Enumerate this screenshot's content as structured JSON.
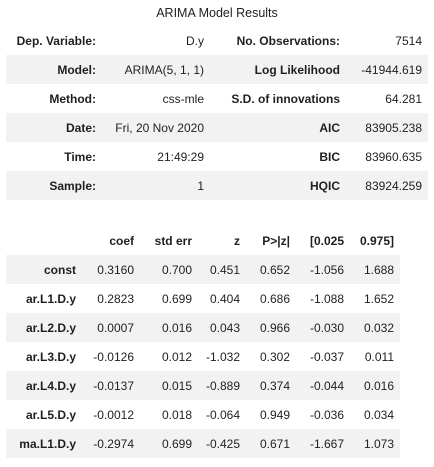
{
  "caption": "ARIMA Model Results",
  "summary": [
    [
      "Dep. Variable:",
      "D.y",
      "No. Observations:",
      "7514"
    ],
    [
      "Model:",
      "ARIMA(5, 1, 1)",
      "Log Likelihood",
      "-41944.619"
    ],
    [
      "Method:",
      "css-mle",
      "S.D. of innovations",
      "64.281"
    ],
    [
      "Date:",
      "Fri, 20 Nov 2020",
      "AIC",
      "83905.238"
    ],
    [
      "Time:",
      "21:49:29",
      "BIC",
      "83960.635"
    ],
    [
      "Sample:",
      "1",
      "HQIC",
      "83924.259"
    ]
  ],
  "coef_table": {
    "headers": [
      "",
      "coef",
      "std err",
      "z",
      "P>|z|",
      "[0.025",
      "0.975]"
    ],
    "rows": [
      [
        "const",
        "0.3160",
        "0.700",
        "0.451",
        "0.652",
        "-1.056",
        "1.688"
      ],
      [
        "ar.L1.D.y",
        "0.2823",
        "0.699",
        "0.404",
        "0.686",
        "-1.088",
        "1.652"
      ],
      [
        "ar.L2.D.y",
        "0.0007",
        "0.016",
        "0.043",
        "0.966",
        "-0.030",
        "0.032"
      ],
      [
        "ar.L3.D.y",
        "-0.0126",
        "0.012",
        "-1.032",
        "0.302",
        "-0.037",
        "0.011"
      ],
      [
        "ar.L4.D.y",
        "-0.0137",
        "0.015",
        "-0.889",
        "0.374",
        "-0.044",
        "0.016"
      ],
      [
        "ar.L5.D.y",
        "-0.0012",
        "0.018",
        "-0.064",
        "0.949",
        "-0.036",
        "0.034"
      ],
      [
        "ma.L1.D.y",
        "-0.2974",
        "0.699",
        "-0.425",
        "0.671",
        "-1.667",
        "1.073"
      ]
    ]
  }
}
